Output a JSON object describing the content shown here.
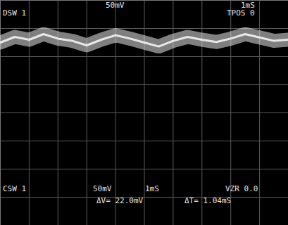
{
  "chart_data": {
    "type": "line",
    "annotations": [
      "DSW 1",
      "50mV",
      "1mS",
      "TPOS 0",
      "CSW 1",
      "50mV",
      "1mS",
      "VZR 0.0",
      "ΔV= 22.0mV",
      "ΔT= 1.04mS"
    ],
    "x": [
      0,
      0.5,
      1,
      1.5,
      2,
      2.5,
      3,
      3.5,
      4,
      4.5,
      5,
      5.5,
      6,
      6.5,
      7,
      7.5,
      8,
      8.5,
      9,
      9.5,
      10
    ],
    "values": [
      125,
      135,
      130,
      140,
      132,
      128,
      120,
      130,
      138,
      132,
      125,
      118,
      128,
      135,
      130,
      126,
      132,
      140,
      134,
      128,
      130
    ],
    "color": "#e8e8e8",
    "xlim": [
      0,
      10
    ],
    "xticks": [
      0,
      1,
      2,
      3,
      4,
      5,
      6,
      7,
      8,
      9,
      10
    ],
    "ylim": [
      -200,
      200
    ],
    "yticks": [
      -200,
      -150,
      -100,
      -50,
      0,
      50,
      100,
      150,
      200
    ],
    "grid": true,
    "tick_labels": false
  }
}
